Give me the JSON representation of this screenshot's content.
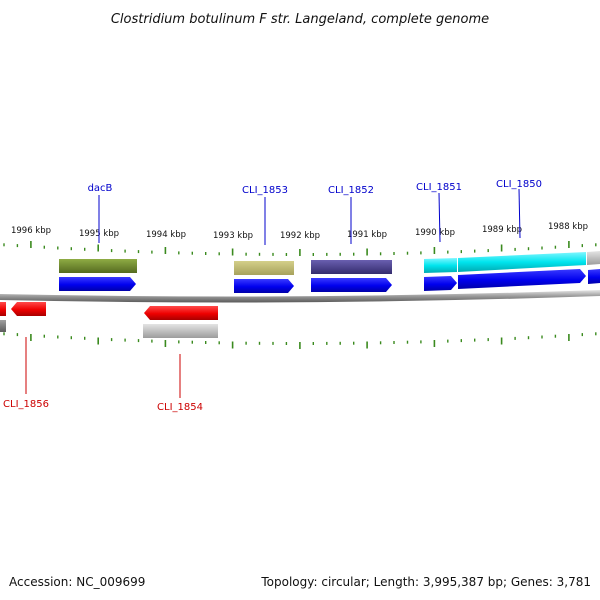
{
  "title": "Clostridium botulinum F str. Langeland, complete genome",
  "accession": "Accession: NC_009699",
  "topology": "Topology: circular; Length: 3,995,387 bp; Genes: 3,781",
  "colors": {
    "tick": "#3a8a1e",
    "forward_label": "#0000cc",
    "reverse_label": "#cc0000",
    "backbone": "#8c8c8c",
    "cds_forward": "#0000ee",
    "cds_reverse": "#ee0000"
  },
  "scale": {
    "ticks_kbp": [
      "1996 kbp",
      "1995 kbp",
      "1994 kbp",
      "1993 kbp",
      "1992 kbp",
      "1991 kbp",
      "1990 kbp",
      "1989 kbp",
      "1988 kbp"
    ]
  },
  "genes_forward": [
    {
      "label": "dacB",
      "feature_color": "#6f8c28"
    },
    {
      "label": "CLI_1853",
      "feature_color": "#bdb76b"
    },
    {
      "label": "CLI_1852",
      "feature_color": "#483d8b"
    },
    {
      "label": "CLI_1851",
      "feature_color": "#00e5ee"
    },
    {
      "label": "CLI_1850",
      "feature_color": "#00e5ee"
    }
  ],
  "genes_reverse": [
    {
      "label": "CLI_1856"
    },
    {
      "label": "CLI_1854"
    }
  ]
}
